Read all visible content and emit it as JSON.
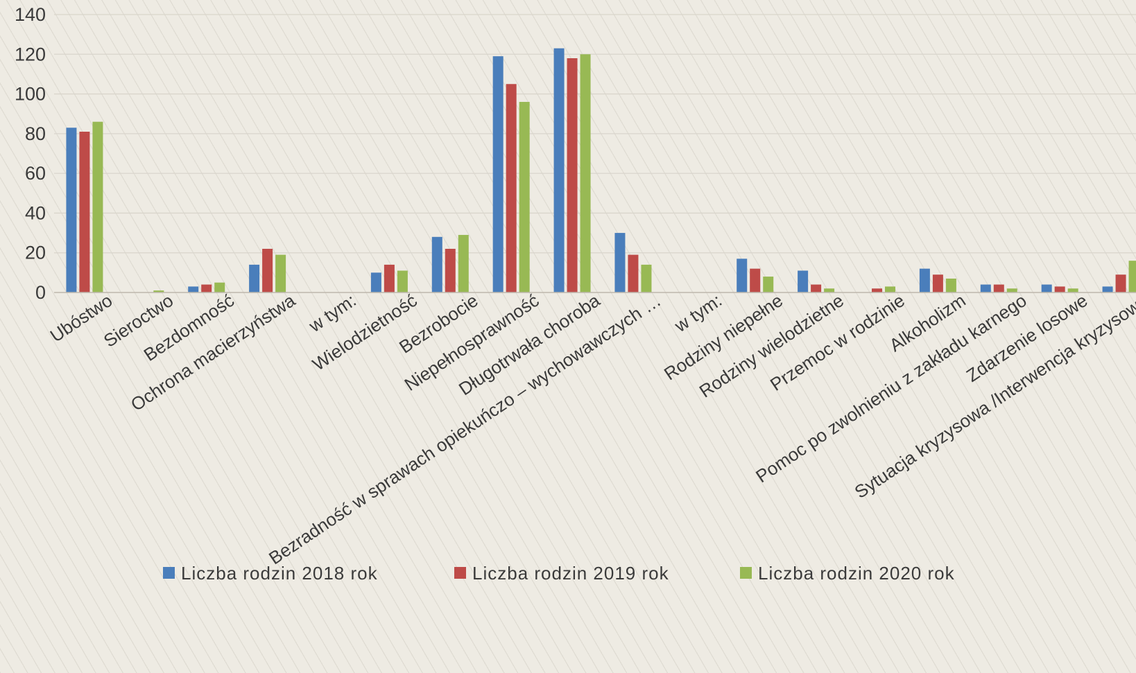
{
  "chart_data": {
    "type": "bar",
    "title": "",
    "xlabel": "",
    "ylabel": "",
    "ylim": [
      0,
      140
    ],
    "yticks": [
      0,
      20,
      40,
      60,
      80,
      100,
      120,
      140
    ],
    "grid": true,
    "legend_position": "bottom",
    "categories": [
      "Ubóstwo",
      "Sieroctwo",
      "Bezdomność",
      "Ochrona macierzyństwa",
      "w tym:",
      "Wielodzietność",
      "Bezrobocie",
      "Niepełnosprawność",
      "Długotrwała choroba",
      "Bezradność w sprawach opiekuńczo – wychowawczych  …",
      "w tym:",
      "Rodziny niepełne",
      "Rodziny wielodzietne",
      "Przemoc w rodzinie",
      "Alkoholizm",
      "Pomoc po zwolnieniu z zakładu karnego",
      "Zdarzenie losowe",
      "Sytuacja kryzysowa /Interwencja kryzysowa"
    ],
    "series": [
      {
        "name": "Liczba rodzin 2018 rok",
        "color": "#4a7ebb",
        "values": [
          83,
          0,
          3,
          14,
          0,
          10,
          28,
          119,
          123,
          30,
          0,
          17,
          11,
          0,
          12,
          4,
          4,
          3
        ]
      },
      {
        "name": "Liczba rodzin 2019 rok",
        "color": "#be4b48",
        "values": [
          81,
          0,
          4,
          22,
          0,
          14,
          22,
          105,
          118,
          19,
          0,
          12,
          4,
          2,
          9,
          4,
          3,
          9
        ]
      },
      {
        "name": "Liczba rodzin 2020 rok",
        "color": "#98b954",
        "values": [
          86,
          1,
          5,
          19,
          0,
          11,
          29,
          96,
          120,
          14,
          0,
          8,
          2,
          3,
          7,
          2,
          2,
          16
        ]
      }
    ]
  }
}
